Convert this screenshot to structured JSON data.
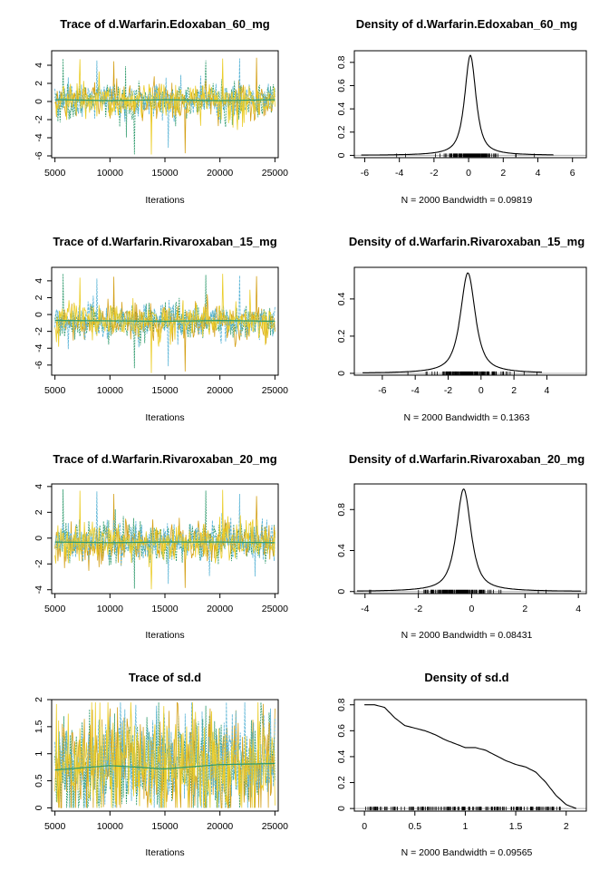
{
  "colors": {
    "chain1": "#2e9a6c",
    "chain2": "#ebcd2a",
    "chain3": "#5ab4d6",
    "chain4": "#d4a017",
    "density": "#000000",
    "baseline": "#b0b0b0"
  },
  "chart_data": [
    {
      "type": "line",
      "title": "Trace of d.Warfarin.Edoxaban_60_mg",
      "xlabel": "Iterations",
      "ylabel": "",
      "xlim": [
        4700,
        25300
      ],
      "ylim": [
        -6.2,
        5.6
      ],
      "xticks": [
        5000,
        10000,
        15000,
        20000,
        25000
      ],
      "yticks": [
        -6,
        -4,
        -2,
        0,
        2,
        4
      ],
      "n_chains": 4,
      "x_range": [
        5000,
        25000
      ],
      "chain_mean": 0.15,
      "chain_sd": 1.0,
      "extremes": [
        -5.9,
        5.0
      ],
      "running_mean": [
        [
          5000,
          0.2
        ],
        [
          10000,
          0.1
        ],
        [
          12500,
          0.15
        ],
        [
          15000,
          0.2
        ],
        [
          20000,
          0.1
        ],
        [
          25000,
          0.2
        ]
      ],
      "grid": false
    },
    {
      "type": "line",
      "title": "Density of d.Warfarin.Edoxaban_60_mg",
      "xlabel": "N = 2000   Bandwidth = 0.09819",
      "ylabel": "",
      "xlim": [
        -6.6,
        6.8
      ],
      "ylim": [
        -0.02,
        0.9
      ],
      "xticks": [
        -6,
        -4,
        -2,
        0,
        2,
        4,
        6
      ],
      "yticks": [
        0.0,
        0.2,
        0.4,
        0.6,
        0.8
      ],
      "peak_x": 0.1,
      "peak_y": 0.86,
      "spread": 0.45,
      "rug_range": [
        -5.9,
        4.6
      ],
      "grid": false
    },
    {
      "type": "line",
      "title": "Trace of d.Warfarin.Rivaroxaban_15_mg",
      "xlabel": "Iterations",
      "ylabel": "",
      "xlim": [
        4700,
        25300
      ],
      "ylim": [
        -7.2,
        5.6
      ],
      "xticks": [
        5000,
        10000,
        15000,
        20000,
        25000
      ],
      "yticks": [
        -6,
        -4,
        -2,
        0,
        2,
        4
      ],
      "n_chains": 4,
      "x_range": [
        5000,
        25000
      ],
      "chain_mean": -0.8,
      "chain_sd": 1.0,
      "extremes": [
        -7.0,
        5.0
      ],
      "running_mean": [
        [
          5000,
          -0.7
        ],
        [
          10000,
          -0.75
        ],
        [
          15000,
          -0.8
        ],
        [
          20000,
          -0.7
        ],
        [
          25000,
          -0.8
        ]
      ],
      "grid": false
    },
    {
      "type": "line",
      "title": "Density of d.Warfarin.Rivaroxaban_15_mg",
      "xlabel": "N = 2000   Bandwidth = 0.1363",
      "ylabel": "",
      "xlim": [
        -7.7,
        6.4
      ],
      "ylim": [
        -0.01,
        0.57
      ],
      "xticks": [
        -6,
        -4,
        -2,
        0,
        2,
        4
      ],
      "yticks": [
        0.0,
        0.2,
        0.4
      ],
      "peak_x": -0.8,
      "peak_y": 0.54,
      "spread": 0.62,
      "rug_range": [
        -6.9,
        3.4
      ],
      "grid": false
    },
    {
      "type": "line",
      "title": "Trace of d.Warfarin.Rivaroxaban_20_mg",
      "xlabel": "Iterations",
      "ylabel": "",
      "xlim": [
        4700,
        25300
      ],
      "ylim": [
        -4.3,
        4.2
      ],
      "xticks": [
        5000,
        10000,
        15000,
        20000,
        25000
      ],
      "yticks": [
        -4,
        -2,
        0,
        2,
        4
      ],
      "n_chains": 4,
      "x_range": [
        5000,
        25000
      ],
      "chain_mean": -0.3,
      "chain_sd": 0.75,
      "extremes": [
        -4.0,
        3.8
      ],
      "running_mean": [
        [
          5000,
          -0.3
        ],
        [
          10000,
          -0.35
        ],
        [
          15000,
          -0.3
        ],
        [
          20000,
          -0.3
        ],
        [
          25000,
          -0.35
        ]
      ],
      "grid": false
    },
    {
      "type": "line",
      "title": "Density of d.Warfarin.Rivaroxaban_20_mg",
      "xlabel": "N = 2000   Bandwidth = 0.08431",
      "ylabel": "",
      "xlim": [
        -4.4,
        4.3
      ],
      "ylim": [
        -0.02,
        1.05
      ],
      "xticks": [
        -4,
        -2,
        0,
        2,
        4
      ],
      "yticks": [
        0.0,
        0.4,
        0.8
      ],
      "peak_x": -0.3,
      "peak_y": 1.0,
      "spread": 0.38,
      "rug_range": [
        -4.0,
        3.8
      ],
      "grid": false
    },
    {
      "type": "line",
      "title": "Trace of sd.d",
      "xlabel": "Iterations",
      "ylabel": "",
      "xlim": [
        4700,
        25300
      ],
      "ylim": [
        -0.06,
        2.0
      ],
      "xticks": [
        5000,
        10000,
        15000,
        20000,
        25000
      ],
      "yticks": [
        0.0,
        0.5,
        1.0,
        1.5,
        2.0
      ],
      "n_chains": 4,
      "x_range": [
        5000,
        25000
      ],
      "chain_mean": 0.8,
      "chain_sd": 0.5,
      "clamp": [
        0.0,
        1.95
      ],
      "running_mean": [
        [
          5000,
          0.7
        ],
        [
          10000,
          0.78
        ],
        [
          15000,
          0.72
        ],
        [
          20000,
          0.8
        ],
        [
          25000,
          0.82
        ]
      ],
      "grid": false
    },
    {
      "type": "line",
      "title": "Density of sd.d",
      "xlabel": "N = 2000   Bandwidth = 0.09565",
      "ylabel": "",
      "xlim": [
        -0.1,
        2.2
      ],
      "ylim": [
        -0.02,
        0.84
      ],
      "xticks": [
        0.0,
        0.5,
        1.0,
        1.5,
        2.0
      ],
      "yticks": [
        0.0,
        0.2,
        0.4,
        0.6,
        0.8
      ],
      "curve": [
        [
          0.0,
          0.8
        ],
        [
          0.1,
          0.8
        ],
        [
          0.2,
          0.78
        ],
        [
          0.3,
          0.7
        ],
        [
          0.4,
          0.64
        ],
        [
          0.5,
          0.62
        ],
        [
          0.6,
          0.6
        ],
        [
          0.7,
          0.57
        ],
        [
          0.8,
          0.53
        ],
        [
          0.9,
          0.5
        ],
        [
          1.0,
          0.47
        ],
        [
          1.1,
          0.47
        ],
        [
          1.2,
          0.45
        ],
        [
          1.3,
          0.41
        ],
        [
          1.4,
          0.37
        ],
        [
          1.5,
          0.34
        ],
        [
          1.6,
          0.32
        ],
        [
          1.7,
          0.28
        ],
        [
          1.8,
          0.2
        ],
        [
          1.9,
          0.1
        ],
        [
          2.0,
          0.03
        ],
        [
          2.1,
          0.0
        ]
      ],
      "rug_range": [
        0.0,
        1.95
      ],
      "grid": false
    }
  ]
}
